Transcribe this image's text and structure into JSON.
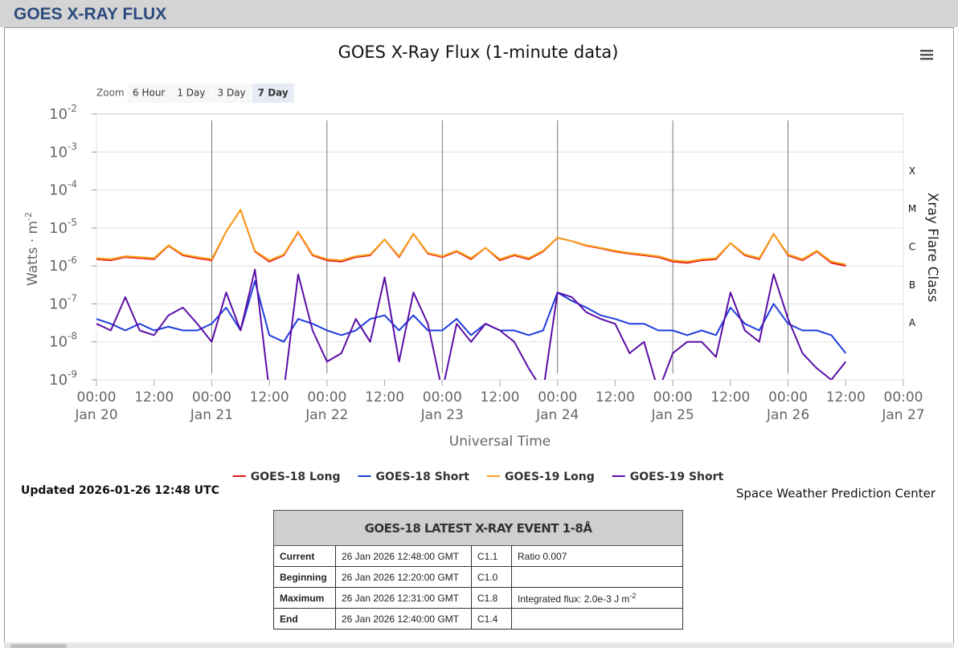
{
  "header": {
    "title": "GOES X-RAY FLUX"
  },
  "zoom": {
    "label": "Zoom",
    "buttons": [
      "6 Hour",
      "1 Day",
      "3 Day",
      "7 Day"
    ],
    "selected": 3
  },
  "chart_data": {
    "type": "line",
    "title": "GOES X-Ray Flux (1-minute data)",
    "x_label": "Universal Time",
    "y_label": "Watts · m",
    "y_label_exponent": "-2",
    "y2_label": "Xray Flare Class",
    "log_scale": true,
    "grid": true,
    "day_lines": true,
    "xlim": [
      "Jan 20 00:00",
      "Jan 27 00:00"
    ],
    "xticks": [
      {
        "value": "Jan 20 00:00",
        "label": [
          "00:00",
          "Jan 20"
        ]
      },
      {
        "value": "Jan 20 12:00",
        "label": "12:00"
      },
      {
        "value": "Jan 21 00:00",
        "label": [
          "00:00",
          "Jan 21"
        ]
      },
      {
        "value": "Jan 21 12:00",
        "label": "12:00"
      },
      {
        "value": "Jan 22 00:00",
        "label": [
          "00:00",
          "Jan 22"
        ]
      },
      {
        "value": "Jan 22 12:00",
        "label": "12:00"
      },
      {
        "value": "Jan 23 00:00",
        "label": [
          "00:00",
          "Jan 23"
        ]
      },
      {
        "value": "Jan 23 12:00",
        "label": "12:00"
      },
      {
        "value": "Jan 24 00:00",
        "label": [
          "00:00",
          "Jan 24"
        ]
      },
      {
        "value": "Jan 24 12:00",
        "label": "12:00"
      },
      {
        "value": "Jan 25 00:00",
        "label": [
          "00:00",
          "Jan 25"
        ]
      },
      {
        "value": "Jan 25 12:00",
        "label": "12:00"
      },
      {
        "value": "Jan 26 00:00",
        "label": [
          "00:00",
          "Jan 26"
        ]
      },
      {
        "value": "Jan 26 12:00",
        "label": "12:00"
      },
      {
        "value": "Jan 27 00:00",
        "label": [
          "00:00",
          "Jan 27"
        ]
      }
    ],
    "ylim": [
      1e-09,
      0.01
    ],
    "yticks": [
      {
        "value": 1e-09,
        "label": "10",
        "exponent": "-9"
      },
      {
        "value": 1e-08,
        "label": "10",
        "exponent": "-8"
      },
      {
        "value": 1e-07,
        "label": "10",
        "exponent": "-7"
      },
      {
        "value": 1e-06,
        "label": "10",
        "exponent": "-6"
      },
      {
        "value": 1e-05,
        "label": "10",
        "exponent": "-5"
      },
      {
        "value": 0.0001,
        "label": "10",
        "exponent": "-4"
      },
      {
        "value": 0.001,
        "label": "10",
        "exponent": "-3"
      },
      {
        "value": 0.01,
        "label": "10",
        "exponent": "-2"
      }
    ],
    "y2ticks": [
      {
        "value": 1e-08,
        "label": "A"
      },
      {
        "value": 1e-07,
        "label": "B"
      },
      {
        "value": 1e-06,
        "label": "C"
      },
      {
        "value": 1e-05,
        "label": "M"
      },
      {
        "value": 0.0001,
        "label": "X"
      }
    ],
    "x": [
      "Jan 20 00:00",
      "Jan 20 03:00",
      "Jan 20 06:00",
      "Jan 20 09:00",
      "Jan 20 12:00",
      "Jan 20 15:00",
      "Jan 20 18:00",
      "Jan 20 21:00",
      "Jan 21 00:00",
      "Jan 21 03:00",
      "Jan 21 06:00",
      "Jan 21 09:00",
      "Jan 21 12:00",
      "Jan 21 15:00",
      "Jan 21 18:00",
      "Jan 21 21:00",
      "Jan 22 00:00",
      "Jan 22 03:00",
      "Jan 22 06:00",
      "Jan 22 09:00",
      "Jan 22 12:00",
      "Jan 22 15:00",
      "Jan 22 18:00",
      "Jan 22 21:00",
      "Jan 23 00:00",
      "Jan 23 03:00",
      "Jan 23 06:00",
      "Jan 23 09:00",
      "Jan 23 12:00",
      "Jan 23 15:00",
      "Jan 23 18:00",
      "Jan 23 21:00",
      "Jan 24 00:00",
      "Jan 24 03:00",
      "Jan 24 06:00",
      "Jan 24 09:00",
      "Jan 24 12:00",
      "Jan 24 15:00",
      "Jan 24 18:00",
      "Jan 24 21:00",
      "Jan 25 00:00",
      "Jan 25 03:00",
      "Jan 25 06:00",
      "Jan 25 09:00",
      "Jan 25 12:00",
      "Jan 25 15:00",
      "Jan 25 18:00",
      "Jan 25 21:00",
      "Jan 26 00:00",
      "Jan 26 03:00",
      "Jan 26 06:00",
      "Jan 26 09:00",
      "Jan 26 12:00"
    ],
    "series": [
      {
        "name": "GOES-18 Long",
        "color": "#e8161b",
        "values": [
          1.5e-06,
          1.4e-06,
          1.7e-06,
          1.6e-06,
          1.5e-06,
          3.4e-06,
          1.9e-06,
          1.6e-06,
          1.4e-06,
          8e-06,
          3e-05,
          2.4e-06,
          1.3e-06,
          1.9e-06,
          7.8e-06,
          1.9e-06,
          1.4e-06,
          1.3e-06,
          1.7e-06,
          1.9e-06,
          5e-06,
          1.7e-06,
          7e-06,
          2.1e-06,
          1.7e-06,
          2.4e-06,
          1.5e-06,
          3e-06,
          1.4e-06,
          1.9e-06,
          1.5e-06,
          2.4e-06,
          5.5e-06,
          4.5e-06,
          3.4e-06,
          2.9e-06,
          2.4e-06,
          2.1e-06,
          1.9e-06,
          1.7e-06,
          1.3e-06,
          1.2e-06,
          1.4e-06,
          1.5e-06,
          4e-06,
          1.9e-06,
          1.5e-06,
          7e-06,
          1.9e-06,
          1.4e-06,
          2.4e-06,
          1.2e-06,
          1e-06
        ]
      },
      {
        "name": "GOES-18 Short",
        "color": "#1f3ddc",
        "values": [
          4e-08,
          3e-08,
          2e-08,
          3e-08,
          2e-08,
          2.5e-08,
          2e-08,
          2e-08,
          3e-08,
          8e-08,
          2e-08,
          4e-07,
          1.5e-08,
          1e-08,
          4e-08,
          3e-08,
          2e-08,
          1.5e-08,
          2e-08,
          4e-08,
          5e-08,
          2e-08,
          5e-08,
          2e-08,
          2e-08,
          4e-08,
          1.5e-08,
          3e-08,
          2e-08,
          2e-08,
          1.5e-08,
          2e-08,
          2e-07,
          1.2e-07,
          8e-08,
          5e-08,
          4e-08,
          3e-08,
          3e-08,
          2e-08,
          2e-08,
          1.5e-08,
          2e-08,
          1.5e-08,
          8e-08,
          3e-08,
          2e-08,
          1e-07,
          3e-08,
          2e-08,
          2e-08,
          1.5e-08,
          5e-09
        ]
      },
      {
        "name": "GOES-19 Long",
        "color": "#f7a21b",
        "values": [
          1.6e-06,
          1.5e-06,
          1.8e-06,
          1.7e-06,
          1.6e-06,
          3.5e-06,
          2e-06,
          1.7e-06,
          1.5e-06,
          8e-06,
          3e-05,
          2.5e-06,
          1.4e-06,
          2e-06,
          8e-06,
          2e-06,
          1.5e-06,
          1.4e-06,
          1.8e-06,
          2e-06,
          5e-06,
          1.8e-06,
          7e-06,
          2.2e-06,
          1.8e-06,
          2.5e-06,
          1.6e-06,
          3e-06,
          1.5e-06,
          2e-06,
          1.6e-06,
          2.5e-06,
          5.5e-06,
          4.5e-06,
          3.5e-06,
          3e-06,
          2.5e-06,
          2.2e-06,
          2e-06,
          1.8e-06,
          1.4e-06,
          1.3e-06,
          1.5e-06,
          1.6e-06,
          4e-06,
          2e-06,
          1.6e-06,
          7e-06,
          2e-06,
          1.5e-06,
          2.5e-06,
          1.3e-06,
          1.1e-06
        ]
      },
      {
        "name": "GOES-19 Short",
        "color": "#5b0ea6",
        "values": [
          3e-08,
          2e-08,
          1.5e-07,
          2e-08,
          1.5e-08,
          5e-08,
          8e-08,
          3e-08,
          1e-08,
          2e-07,
          2e-08,
          8e-07,
          5e-10,
          5e-10,
          6e-07,
          2e-08,
          3e-09,
          5e-09,
          4e-08,
          1e-08,
          5e-07,
          3e-09,
          2e-07,
          3e-08,
          5e-10,
          3e-08,
          1e-08,
          3e-08,
          2e-08,
          1e-08,
          2e-09,
          5e-10,
          2e-07,
          1.5e-07,
          6e-08,
          4e-08,
          3e-08,
          5e-09,
          1e-08,
          5e-10,
          5e-09,
          1e-08,
          1e-08,
          4e-09,
          2e-07,
          2e-08,
          1e-08,
          6e-07,
          4e-08,
          5e-09,
          2e-09,
          1e-09,
          3e-09
        ]
      }
    ]
  },
  "updated": "Updated 2026-01-26 12:48 UTC",
  "credit": "Space Weather Prediction Center",
  "event_table": {
    "title": "GOES-18 LATEST X-RAY EVENT 1-8Å",
    "rows": [
      [
        "Current",
        "26 Jan 2026 12:48:00 GMT",
        "C1.1",
        "Ratio 0.007"
      ],
      [
        "Beginning",
        "26 Jan 2026 12:20:00 GMT",
        "C1.0"
      ],
      [
        "Maximum",
        "26 Jan 2026 12:31:00 GMT",
        "C1.8",
        {
          "text": "Integrated flux: 2.0e-3 J m",
          "sup": "-2"
        }
      ],
      [
        "End",
        "26 Jan 2026 12:40:00 GMT",
        "C1.4"
      ]
    ]
  }
}
